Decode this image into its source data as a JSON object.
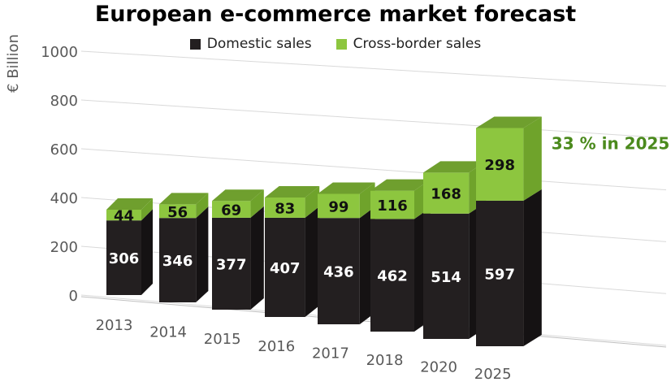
{
  "chart_data": {
    "type": "bar",
    "stacked": true,
    "title": "European e-commerce market forecast",
    "ylabel": "€ Billion",
    "xlabel": "",
    "categories": [
      "2013",
      "2014",
      "2015",
      "2016",
      "2017",
      "2018",
      "2020",
      "2025"
    ],
    "series": [
      {
        "name": "Domestic sales",
        "values": [
          306,
          346,
          377,
          407,
          436,
          462,
          514,
          597
        ]
      },
      {
        "name": "Cross-border sales",
        "values": [
          44,
          56,
          69,
          83,
          99,
          116,
          168,
          298
        ]
      }
    ],
    "ylim": [
      0,
      1000
    ],
    "yticks": [
      0,
      200,
      400,
      600,
      800,
      1000
    ],
    "grid": true,
    "legend_position": "top",
    "annotation": "33 % in 2025",
    "colors": {
      "domestic": "#231f20",
      "domestic_side": "#151213",
      "domestic_top": "#3a3536",
      "cross": "#8dc63f",
      "cross_side": "#6fa32b",
      "cross_top": "#6f9f2e",
      "annotation": "#4b8a1d",
      "grid": "#d9d9d9",
      "axis_text": "#595959"
    }
  }
}
